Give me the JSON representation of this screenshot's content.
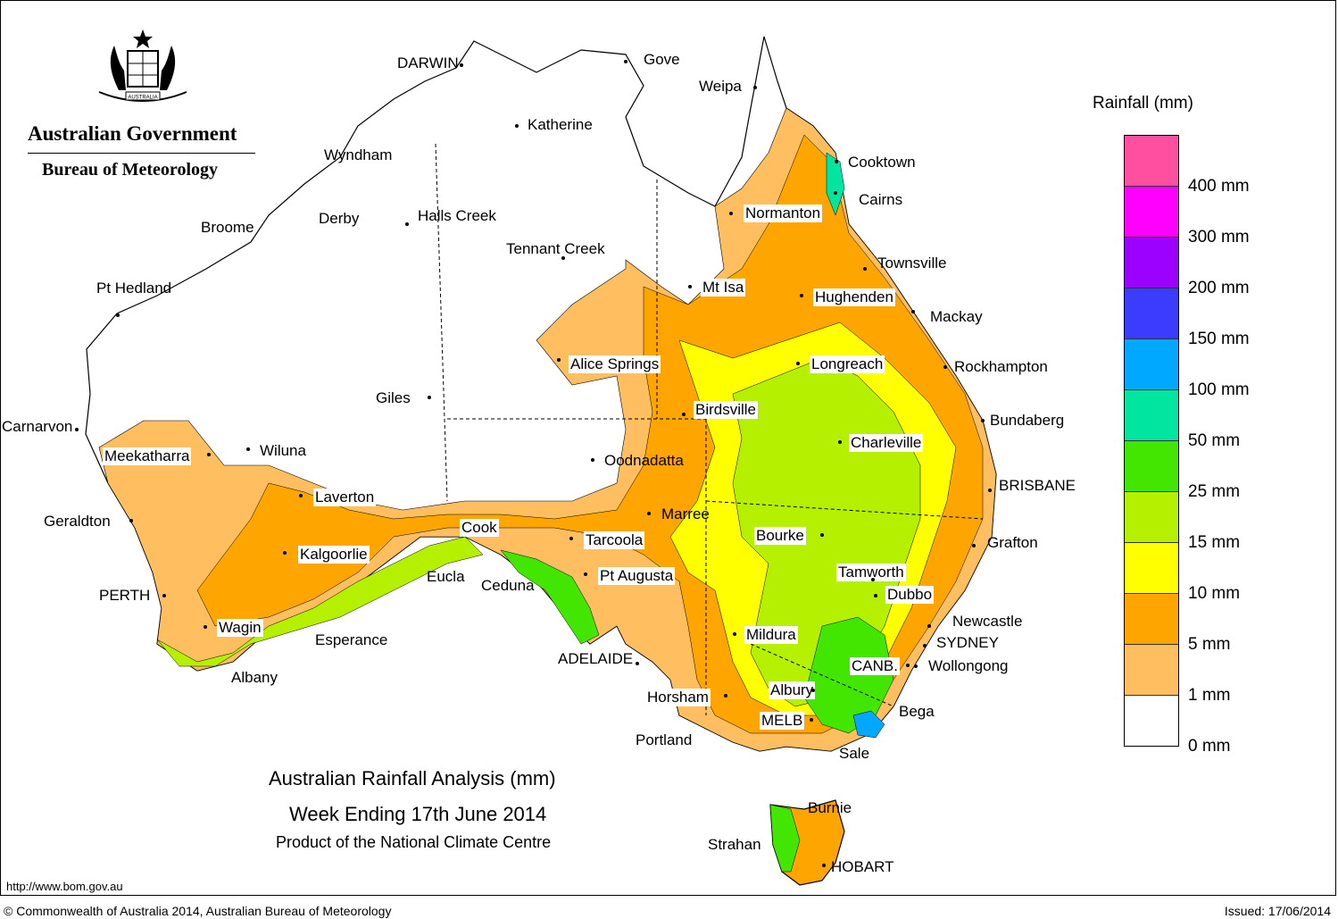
{
  "header": {
    "government": "Australian Government",
    "bureau": "Bureau of Meteorology",
    "crest_label": "AUSTRALIA"
  },
  "map": {
    "title": "Australian Rainfall Analysis (mm)",
    "subtitle": "Week Ending 17th June 2014",
    "product": "Product of the National Climate Centre"
  },
  "legend": {
    "title": "Rainfall (mm)",
    "colors": [
      "#ff4fa0",
      "#ff00ff",
      "#9c00ff",
      "#3c3cff",
      "#00a8ff",
      "#00e6a0",
      "#42e600",
      "#b4f000",
      "#ffff00",
      "#ffa500",
      "#ffbf60",
      "#ffffff"
    ],
    "labels": [
      "400 mm",
      "300 mm",
      "200 mm",
      "150 mm",
      "100 mm",
      "50 mm",
      "25 mm",
      "15 mm",
      "10 mm",
      "5 mm",
      "1 mm",
      "0 mm"
    ]
  },
  "places": [
    "DARWIN",
    "Gove",
    "Weipa",
    "Katherine",
    "Cooktown",
    "Wyndham",
    "Cairns",
    "Normanton",
    "Derby",
    "Halls Creek",
    "Broome",
    "Tennant Creek",
    "Townsville",
    "Pt Hedland",
    "Mt Isa",
    "Hughenden",
    "Mackay",
    "Alice Springs",
    "Longreach",
    "Rockhampton",
    "Giles",
    "Birdsville",
    "Bundaberg",
    "Carnarvon",
    "Charleville",
    "Meekatharra",
    "Wiluna",
    "Oodnadatta",
    "BRISBANE",
    "Laverton",
    "Marree",
    "Geraldton",
    "Cook",
    "Tarcoola",
    "Bourke",
    "Grafton",
    "Kalgoorlie",
    "Tamworth",
    "Eucla",
    "Ceduna",
    "Pt Augusta",
    "PERTH",
    "Dubbo",
    "Newcastle",
    "Wagin",
    "Mildura",
    "SYDNEY",
    "Esperance",
    "ADELAIDE",
    "CANB.",
    "Wollongong",
    "Albany",
    "Albury",
    "Horsham",
    "Bega",
    "MELB",
    "Portland",
    "Sale",
    "Burnie",
    "Strahan",
    "HOBART"
  ],
  "footer": {
    "url": "http://www.bom.gov.au",
    "copyright": "© Commonwealth of Australia 2014, Australian Bureau of Meteorology",
    "issued": "Issued: 17/06/2014"
  }
}
